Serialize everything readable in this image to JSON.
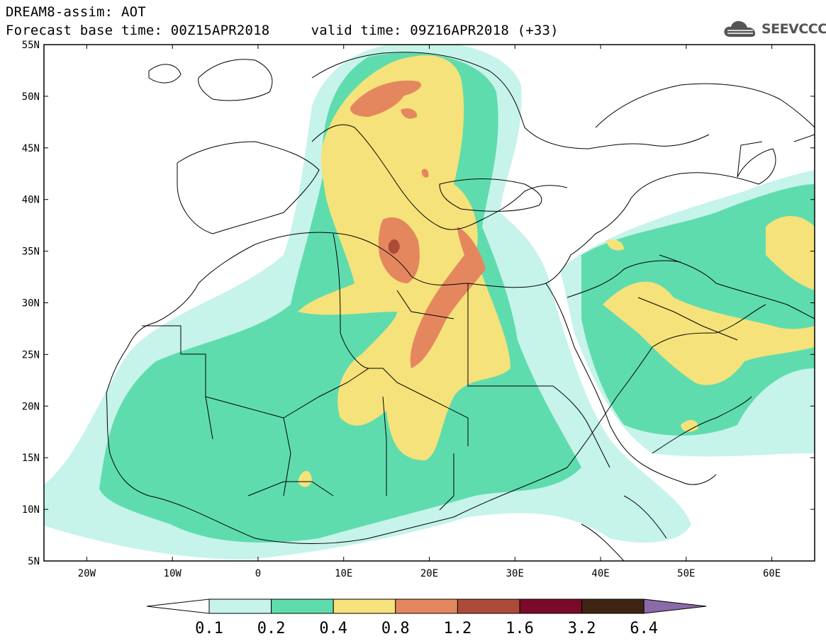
{
  "header": {
    "line1": "DREAM8-assim: AOT",
    "line2": "Forecast base time: 00Z15APR2018     valid time: 09Z16APR2018 (+33)",
    "logo_text": "SEEVCCC"
  },
  "map": {
    "lon_range": [
      -25,
      65
    ],
    "lat_range": [
      5,
      55
    ],
    "lon_ticks": [
      {
        "lon": -20,
        "label": "20W"
      },
      {
        "lon": -10,
        "label": "10W"
      },
      {
        "lon": 0,
        "label": "0"
      },
      {
        "lon": 10,
        "label": "10E"
      },
      {
        "lon": 20,
        "label": "20E"
      },
      {
        "lon": 30,
        "label": "30E"
      },
      {
        "lon": 40,
        "label": "40E"
      },
      {
        "lon": 50,
        "label": "50E"
      },
      {
        "lon": 60,
        "label": "60E"
      }
    ],
    "lat_ticks": [
      {
        "lat": 55,
        "label": "55N"
      },
      {
        "lat": 50,
        "label": "50N"
      },
      {
        "lat": 45,
        "label": "45N"
      },
      {
        "lat": 40,
        "label": "40N"
      },
      {
        "lat": 35,
        "label": "35N"
      },
      {
        "lat": 30,
        "label": "30N"
      },
      {
        "lat": 25,
        "label": "25N"
      },
      {
        "lat": 20,
        "label": "20N"
      },
      {
        "lat": 15,
        "label": "15N"
      },
      {
        "lat": 10,
        "label": "10N"
      },
      {
        "lat": 5,
        "label": "5N"
      }
    ]
  },
  "colorbar": {
    "levels": [
      "0.1",
      "0.2",
      "0.4",
      "0.8",
      "1.2",
      "1.6",
      "3.2",
      "6.4"
    ],
    "colors": [
      "#ffffff",
      "#c6f3ea",
      "#5fdcae",
      "#f5e27a",
      "#e4875f",
      "#ad4b3a",
      "#7a0a28",
      "#3e2412",
      "#8a6aa8"
    ]
  }
}
